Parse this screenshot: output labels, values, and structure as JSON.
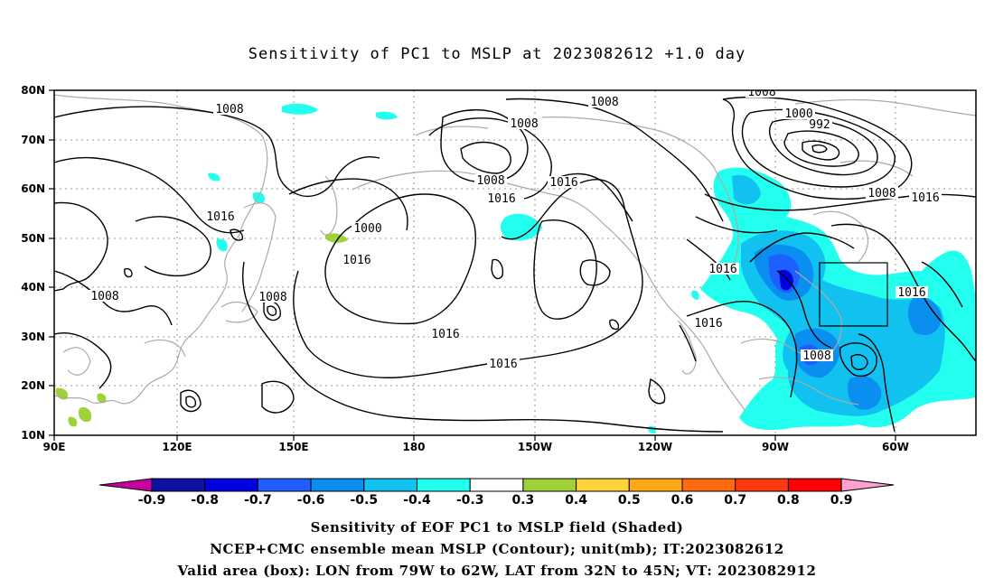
{
  "title": "Sensitivity of PC1 to MSLP at 2023082612 +1.0 day",
  "lat_ticks": [
    "80N",
    "70N",
    "60N",
    "50N",
    "40N",
    "30N",
    "20N",
    "10N"
  ],
  "lon_ticks": [
    "90E",
    "120E",
    "150E",
    "180",
    "150W",
    "120W",
    "90W",
    "60W"
  ],
  "contour_labels": [
    "1008",
    "1016",
    "1016",
    "1008",
    "1008",
    "1016",
    "1008",
    "1008",
    "1016",
    "1000",
    "1008",
    "1016",
    "1008",
    "1000",
    "992",
    "1008",
    "1016",
    "1016",
    "1016",
    "1016",
    "1008",
    "1016"
  ],
  "colorbar": {
    "labels": [
      "-0.9",
      "-0.8",
      "-0.7",
      "-0.6",
      "-0.5",
      "-0.4",
      "-0.3",
      "0.3",
      "0.4",
      "0.5",
      "0.6",
      "0.7",
      "0.8",
      "0.9"
    ],
    "colors": [
      "#1010a0",
      "#0000e0",
      "#1f5fff",
      "#0a8ef0",
      "#11c1f0",
      "#22ffee",
      "#ffffff",
      "#9fd23a",
      "#ffd23a",
      "#ffa815",
      "#ff6a10",
      "#ff3a10",
      "#ff0000"
    ],
    "left_tip_color": "#c800a0",
    "right_tip_color": "#ffa0d0"
  },
  "captions": [
    "Sensitivity of EOF PC1 to MSLP field (Shaded)",
    "NCEP+CMC ensemble mean MSLP (Contour); unit(mb); IT:2023082612",
    "Valid area (box): LON from 79W to 62W, LAT from 32N to 45N; VT: 2023082912"
  ]
}
